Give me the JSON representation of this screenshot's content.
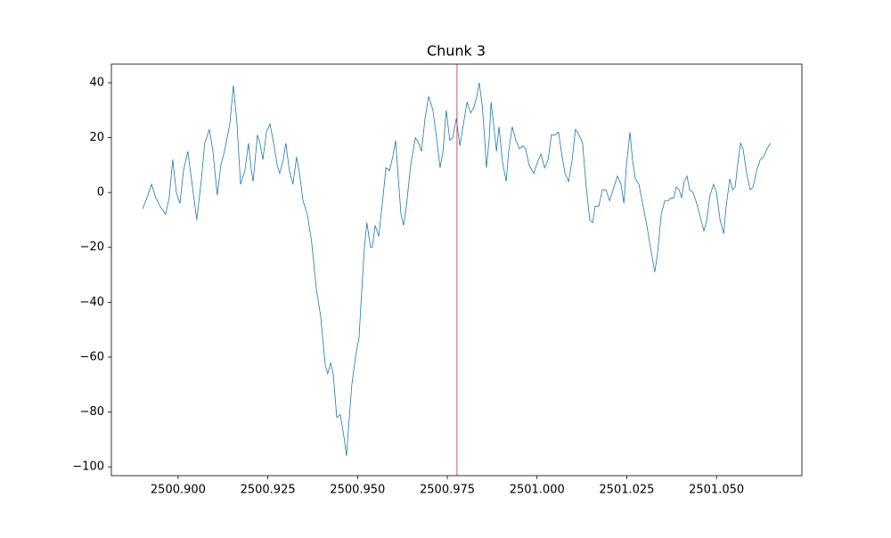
{
  "chart_data": {
    "type": "line",
    "title": "Chunk 3",
    "x": [
      2500.8901,
      2500.8913,
      2500.8926,
      2500.8938,
      2500.895,
      2500.8965,
      2500.8975,
      2500.8985,
      2500.8995,
      2500.9005,
      2500.9015,
      2500.9027,
      2500.9037,
      2500.9052,
      2500.9065,
      2500.9074,
      2500.9087,
      2500.9097,
      2500.9109,
      2500.9119,
      2500.9129,
      2500.9144,
      2500.9154,
      2500.9164,
      2500.9174,
      2500.9186,
      2500.9196,
      2500.9204,
      2500.9209,
      2500.9221,
      2500.9228,
      2500.9236,
      2500.9246,
      2500.9256,
      2500.9266,
      2500.9276,
      2500.9283,
      2500.9293,
      2500.93,
      2500.931,
      2500.932,
      2500.933,
      2500.9338,
      2500.9348,
      2500.936,
      2500.9372,
      2500.9385,
      2500.9397,
      2500.941,
      2500.9417,
      2500.9425,
      2500.9432,
      2500.9442,
      2500.9452,
      2500.9462,
      2500.9469,
      2500.9477,
      2500.9484,
      2500.9494,
      2500.9504,
      2500.9512,
      2500.9519,
      2500.9526,
      2500.9536,
      2500.9541,
      2500.9549,
      2500.9559,
      2500.9569,
      2500.9579,
      2500.9589,
      2500.9598,
      2500.9606,
      2500.9613,
      2500.9621,
      2500.9628,
      2500.9636,
      2500.9648,
      2500.9661,
      2500.967,
      2500.9678,
      2500.9688,
      2500.9698,
      2500.971,
      2500.972,
      2500.973,
      2500.9738,
      2500.9747,
      2500.9757,
      2500.9765,
      2500.9775,
      2500.9785,
      2500.9795,
      2500.9805,
      2500.9815,
      2500.9824,
      2500.9832,
      2500.9839,
      2500.9847,
      2500.9854,
      2500.9859,
      2500.9867,
      2500.9872,
      2500.9879,
      2500.9887,
      2500.9894,
      2500.9904,
      2500.9914,
      2500.9921,
      2500.9931,
      2500.9941,
      2500.9951,
      2500.9961,
      2500.9968,
      2500.9978,
      2500.9991,
      2501.0001,
      2501.0011,
      2501.0021,
      2501.0031,
      2501.004,
      2501.005,
      2501.006,
      2501.007,
      2501.0078,
      2501.0088,
      2501.0098,
      2501.0107,
      2501.0117,
      2501.0127,
      2501.0137,
      2501.0147,
      2501.0155,
      2501.0162,
      2501.0172,
      2501.0182,
      2501.0192,
      2501.0202,
      2501.0212,
      2501.0224,
      2501.0234,
      2501.0242,
      2501.0249,
      2501.0259,
      2501.0266,
      2501.0274,
      2501.0284,
      2501.0294,
      2501.0306,
      2501.0316,
      2501.0328,
      2501.0336,
      2501.0346,
      2501.0356,
      2501.0366,
      2501.0373,
      2501.0381,
      2501.0388,
      2501.0396,
      2501.0403,
      2501.041,
      2501.0418,
      2501.0425,
      2501.0435,
      2501.0445,
      2501.0455,
      2501.0465,
      2501.0473,
      2501.0482,
      2501.0492,
      2501.05,
      2501.051,
      2501.052,
      2501.0527,
      2501.0537,
      2501.0545,
      2501.0552,
      2501.0559,
      2501.0567,
      2501.0574,
      2501.0584,
      2501.0594,
      2501.0602,
      2501.0612,
      2501.0622,
      2501.0631,
      2501.0641,
      2501.0651
    ],
    "values": [
      -6,
      -2,
      3,
      -2,
      -5,
      -8,
      -2,
      12,
      0,
      -4,
      8,
      15,
      5,
      -10,
      5,
      18,
      23,
      15,
      -1,
      10,
      15,
      25,
      39,
      25,
      3,
      8,
      18,
      8,
      4,
      21,
      18,
      12,
      22,
      25,
      18,
      10,
      7,
      12,
      18,
      8,
      3,
      13,
      7,
      -3,
      -8,
      -18,
      -35,
      -45,
      -63,
      -66,
      -62,
      -66,
      -82,
      -81,
      -89,
      -96,
      -82,
      -70,
      -60,
      -53,
      -35,
      -20,
      -11,
      -20,
      -20,
      -12,
      -16,
      -4,
      9,
      8,
      13,
      19,
      6,
      -8,
      -12,
      -5,
      10,
      20,
      18,
      15,
      27,
      35,
      30,
      20,
      9,
      15,
      30,
      19,
      20,
      27,
      17,
      25,
      33,
      29,
      31,
      35,
      40,
      32,
      20,
      9,
      20,
      33,
      25,
      15,
      24,
      11,
      4,
      15,
      24,
      19,
      16,
      17,
      16,
      10,
      7,
      11,
      14,
      9,
      12,
      21,
      21,
      22,
      13,
      7,
      4,
      12,
      23,
      21,
      18,
      2,
      -10,
      -11,
      -5,
      -5,
      1,
      1,
      -3,
      1,
      6,
      3,
      -4,
      10,
      22,
      12,
      5,
      3,
      -4,
      -12,
      -20,
      -29,
      -22,
      -8,
      -3,
      -3,
      -2,
      -2,
      2,
      1,
      -2,
      4,
      6,
      1,
      0,
      -4,
      -9,
      -14,
      -10,
      -1,
      3,
      0,
      -10,
      -15,
      -5,
      5,
      1,
      2,
      10,
      18,
      16,
      7,
      1,
      2,
      8,
      12,
      13,
      16,
      18
    ],
    "color": "#1f77b4",
    "vlines": [
      {
        "x": 2500.9777,
        "color": "#d62728"
      }
    ],
    "xlim": [
      2500.8814,
      2501.0738
    ],
    "xticks": [
      {
        "value": 2500.9,
        "label": "2500.900"
      },
      {
        "value": 2500.925,
        "label": "2500.925"
      },
      {
        "value": 2500.95,
        "label": "2500.950"
      },
      {
        "value": 2500.975,
        "label": "2500.975"
      },
      {
        "value": 2501.0,
        "label": "2501.000"
      },
      {
        "value": 2501.025,
        "label": "2501.025"
      },
      {
        "value": 2501.05,
        "label": "2501.050"
      }
    ],
    "ylim": [
      -103.2,
      46.8
    ],
    "yticks": [
      {
        "value": -100,
        "label": "−100"
      },
      {
        "value": -80,
        "label": "−80"
      },
      {
        "value": -60,
        "label": "−60"
      },
      {
        "value": -40,
        "label": "−40"
      },
      {
        "value": -20,
        "label": "−20"
      },
      0,
      20,
      40
    ],
    "grid": false
  }
}
